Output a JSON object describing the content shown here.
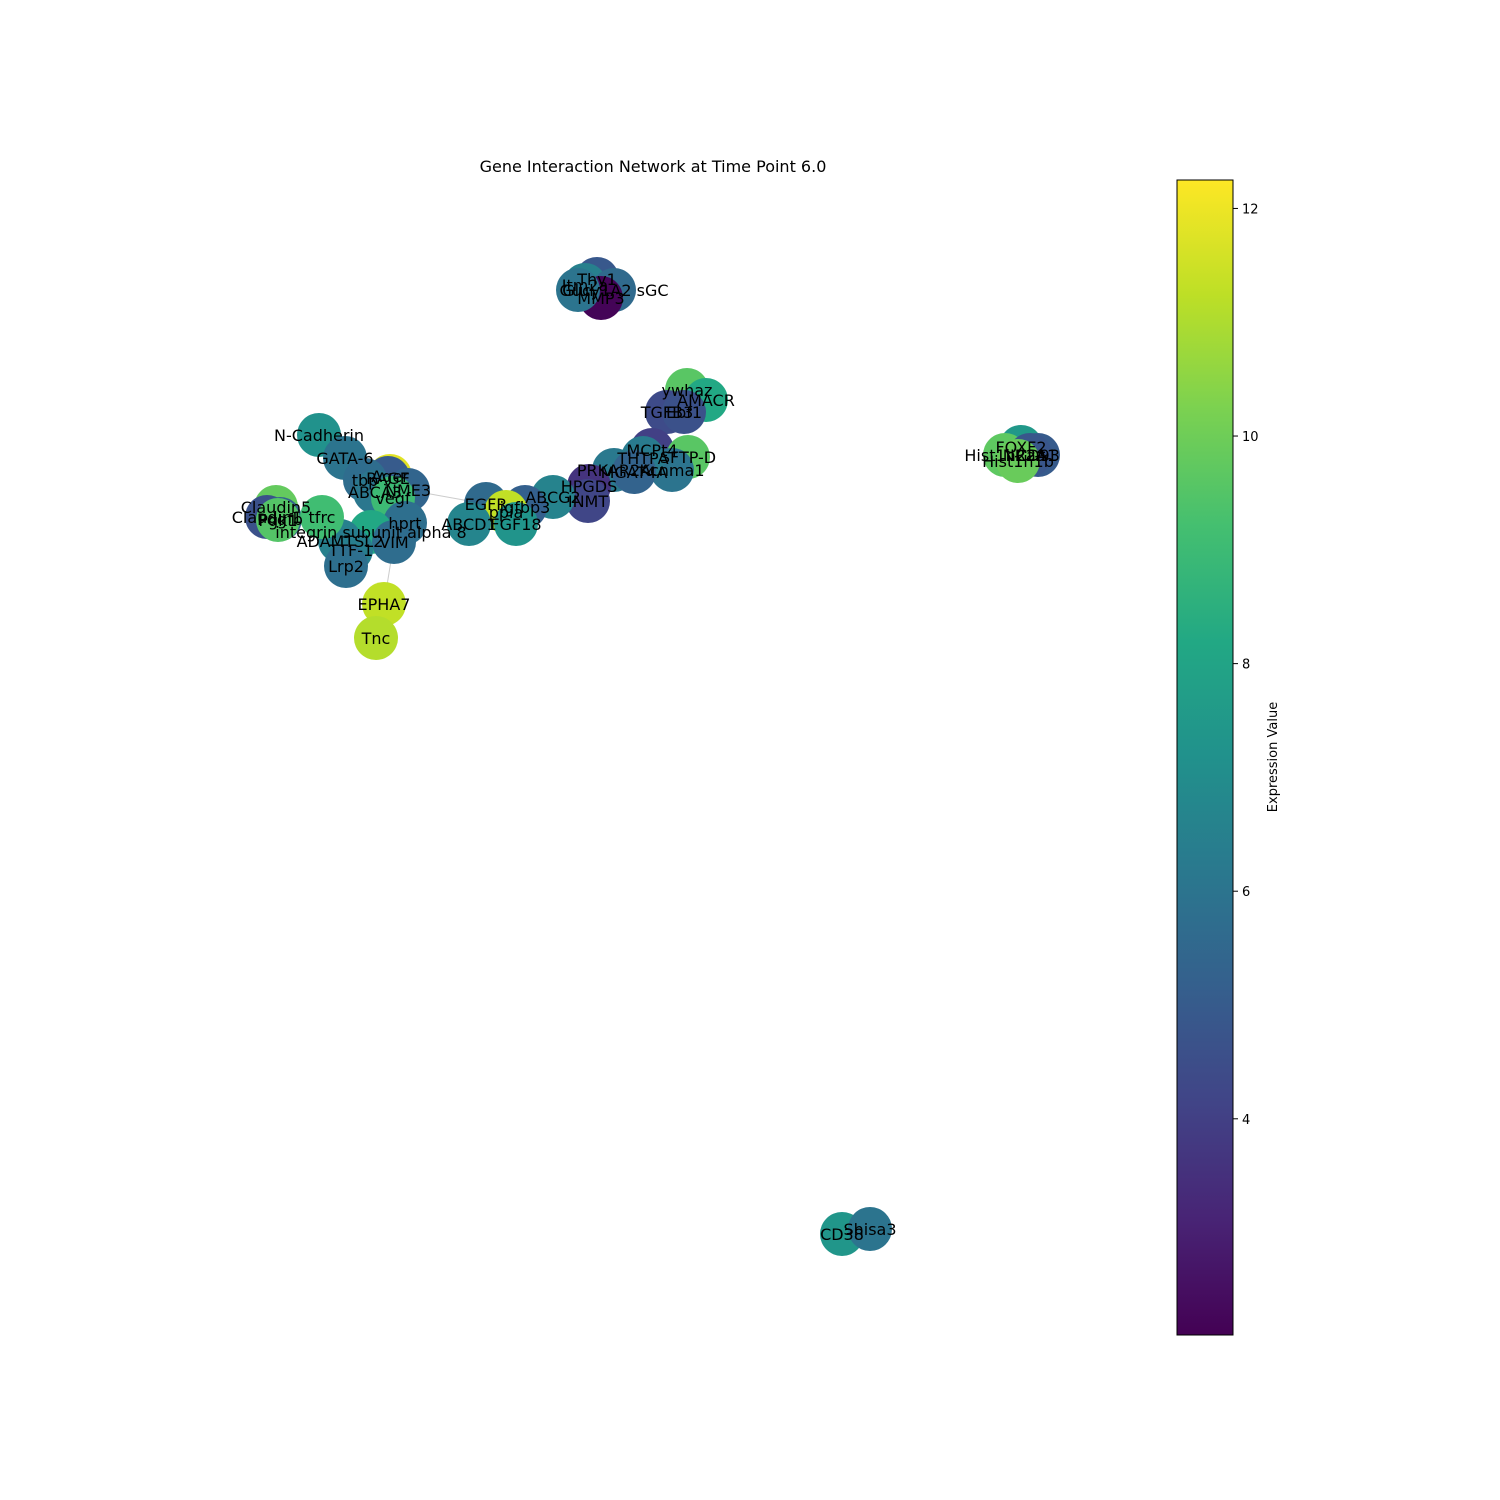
{
  "chart_data": {
    "type": "network",
    "title": "Gene Interaction Network at Time Point 6.0",
    "colorbar": {
      "label": "Expression Value",
      "min": 2.1,
      "max": 12.25,
      "ticks": [
        4,
        6,
        8,
        10,
        12
      ],
      "tick_labels": [
        "4",
        "6",
        "8",
        "10",
        "12"
      ],
      "colormap": "viridis"
    },
    "nodes": [
      {
        "label": "Thy1",
        "value": 4.9
      },
      {
        "label": "Itm2a",
        "value": 6.5
      },
      {
        "label": "Gucy1A2  sGC",
        "value": 5.6
      },
      {
        "label": "MMP3",
        "value": 2.2
      },
      {
        "label": "Glul",
        "value": 6.0
      },
      {
        "label": "ywhaz",
        "value": 9.6
      },
      {
        "label": "AMACR",
        "value": 8.2
      },
      {
        "label": "TGFB3",
        "value": 4.4
      },
      {
        "label": "Ebf1",
        "value": 4.6
      },
      {
        "label": "MCPt4",
        "value": 4.0
      },
      {
        "label": "SFTP-D",
        "value": 9.6
      },
      {
        "label": "Kcnma1",
        "value": 6.0
      },
      {
        "label": "THTPA",
        "value": 6.3
      },
      {
        "label": "PRKAR2A",
        "value": 6.2
      },
      {
        "label": "MGAT4A",
        "value": 5.3
      },
      {
        "label": "HPGDS",
        "value": 3.6
      },
      {
        "label": "INMT",
        "value": 4.2
      },
      {
        "label": "ABCG2",
        "value": 6.6
      },
      {
        "label": "EGFR",
        "value": 5.6
      },
      {
        "label": "igfbp3",
        "value": 5.2
      },
      {
        "label": "ppia",
        "value": 11.3
      },
      {
        "label": "FGF18",
        "value": 7.3
      },
      {
        "label": "ABCD1",
        "value": 6.7
      },
      {
        "label": "N-Cadherin",
        "value": 7.2
      },
      {
        "label": "GATA-6",
        "value": 6.0
      },
      {
        "label": "Ager",
        "value": 11.8
      },
      {
        "label": "RAGE",
        "value": 5.0
      },
      {
        "label": "tbp",
        "value": 5.7
      },
      {
        "label": "ABCA3",
        "value": 6.1
      },
      {
        "label": "NME3",
        "value": 5.4
      },
      {
        "label": "vegf",
        "value": 9.0
      },
      {
        "label": "hprt",
        "value": 5.8
      },
      {
        "label": "integrin subunit alpha 8",
        "value": 8.2
      },
      {
        "label": "VIM",
        "value": 5.7
      },
      {
        "label": "ADAMTSL2",
        "value": 6.5
      },
      {
        "label": "TTF-1",
        "value": 6.4
      },
      {
        "label": "Lrp2",
        "value": 5.8
      },
      {
        "label": "Claudin5",
        "value": 9.8
      },
      {
        "label": "Claudin1",
        "value": 4.6
      },
      {
        "label": "Pdgfb",
        "value": 5.3
      },
      {
        "label": "tfrc",
        "value": 9.1
      },
      {
        "label": "Pgk1",
        "value": 9.5
      },
      {
        "label": "EPHA7",
        "value": 11.3
      },
      {
        "label": "Tnc",
        "value": 11.1
      },
      {
        "label": "FOXF2",
        "value": 7.5
      },
      {
        "label": "Hist1h2aa",
        "value": 9.7
      },
      {
        "label": "CD93",
        "value": 5.0
      },
      {
        "label": "NR2A1",
        "value": 4.8
      },
      {
        "label": "Hist1h1b",
        "value": 9.9
      },
      {
        "label": "CD38",
        "value": 7.4
      },
      {
        "label": "Shisa3",
        "value": 6.0
      }
    ],
    "edges": [
      [
        "Thy1",
        "Itm2a"
      ],
      [
        "Thy1",
        "Gucy1A2  sGC"
      ],
      [
        "Thy1",
        "MMP3"
      ],
      [
        "Glul",
        "MMP3"
      ],
      [
        "Gucy1A2  sGC",
        "MMP3"
      ],
      [
        "ywhaz",
        "AMACR"
      ],
      [
        "ywhaz",
        "TGFB3"
      ],
      [
        "TGFB3",
        "Ebf1"
      ],
      [
        "Ebf1",
        "MCPt4"
      ],
      [
        "MCPt4",
        "SFTP-D"
      ],
      [
        "MCPt4",
        "THTPA"
      ],
      [
        "THTPA",
        "Kcnma1"
      ],
      [
        "THTPA",
        "PRKAR2A"
      ],
      [
        "PRKAR2A",
        "MGAT4A"
      ],
      [
        "PRKAR2A",
        "HPGDS"
      ],
      [
        "HPGDS",
        "INMT"
      ],
      [
        "HPGDS",
        "ABCG2"
      ],
      [
        "ABCG2",
        "igfbp3"
      ],
      [
        "igfbp3",
        "EGFR"
      ],
      [
        "igfbp3",
        "ppia"
      ],
      [
        "ppia",
        "FGF18"
      ],
      [
        "EGFR",
        "ABCD1"
      ],
      [
        "EGFR",
        "NME3"
      ],
      [
        "N-Cadherin",
        "GATA-6"
      ],
      [
        "GATA-6",
        "tbp"
      ],
      [
        "tbp",
        "Ager"
      ],
      [
        "Ager",
        "RAGE"
      ],
      [
        "RAGE",
        "ABCA3"
      ],
      [
        "RAGE",
        "NME3"
      ],
      [
        "ABCA3",
        "vegf"
      ],
      [
        "vegf",
        "hprt"
      ],
      [
        "hprt",
        "VIM"
      ],
      [
        "hprt",
        "integrin subunit alpha 8"
      ],
      [
        "VIM",
        "ADAMTSL2"
      ],
      [
        "ADAMTSL2",
        "TTF-1"
      ],
      [
        "TTF-1",
        "Lrp2"
      ],
      [
        "ADAMTSL2",
        "tfrc"
      ],
      [
        "tfrc",
        "Pgk1"
      ],
      [
        "Pgk1",
        "Claudin5"
      ],
      [
        "Pgk1",
        "Claudin1"
      ],
      [
        "Claudin1",
        "Pdgfb"
      ],
      [
        "VIM",
        "EPHA7"
      ],
      [
        "EPHA7",
        "Tnc"
      ],
      [
        "FOXF2",
        "Hist1h2aa"
      ],
      [
        "FOXF2",
        "NR2A1"
      ],
      [
        "Hist1h2aa",
        "CD93"
      ],
      [
        "CD93",
        "Hist1h1b"
      ],
      [
        "CD38",
        "Shisa3"
      ]
    ]
  }
}
